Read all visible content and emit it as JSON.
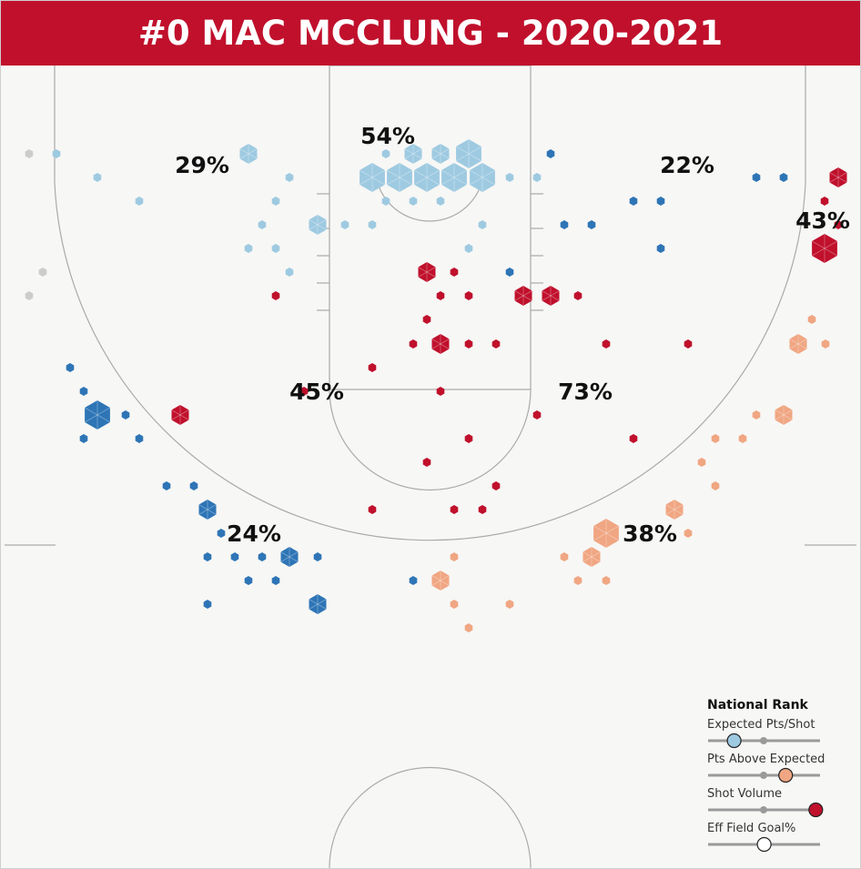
{
  "title": "#0 MAC MCCLUNG - 2020-2021",
  "colors": {
    "title_bg": "#c0102c",
    "light_blue": "#9ecae1",
    "dark_blue": "#2e75b6",
    "red": "#c0102c",
    "orange": "#f0a682",
    "gray": "#cccccc",
    "court_line": "#aaaaaa"
  },
  "chart_data": {
    "type": "hexbin shot chart",
    "zone_percentages": [
      {
        "zone": "restricted-area",
        "label": "54%",
        "color": "light_blue"
      },
      {
        "zone": "left-wing-mid",
        "label": "29%",
        "color": "light_blue"
      },
      {
        "zone": "right-wing-mid",
        "label": "22%",
        "color": "dark_blue"
      },
      {
        "zone": "right-corner-mid",
        "label": "43%",
        "color": "red"
      },
      {
        "zone": "left-elbow",
        "label": "45%",
        "color": "dark_blue"
      },
      {
        "zone": "right-elbow",
        "label": "73%",
        "color": "red"
      },
      {
        "zone": "left-three",
        "label": "24%",
        "color": "dark_blue"
      },
      {
        "zone": "right-three",
        "label": "38%",
        "color": "orange"
      }
    ]
  },
  "legend": {
    "title": "National Rank",
    "items": [
      {
        "label": "Expected Pts/Shot",
        "fill": "#9ecae1",
        "rank": 0.2
      },
      {
        "label": "Pts Above Expected",
        "fill": "#f0a682",
        "rank": 0.68
      },
      {
        "label": "Shot Volume",
        "fill": "#c0102c",
        "rank": 0.96
      },
      {
        "label": "Eff Field Goal%",
        "fill": "#ffffff",
        "rank": 0.48
      }
    ]
  }
}
